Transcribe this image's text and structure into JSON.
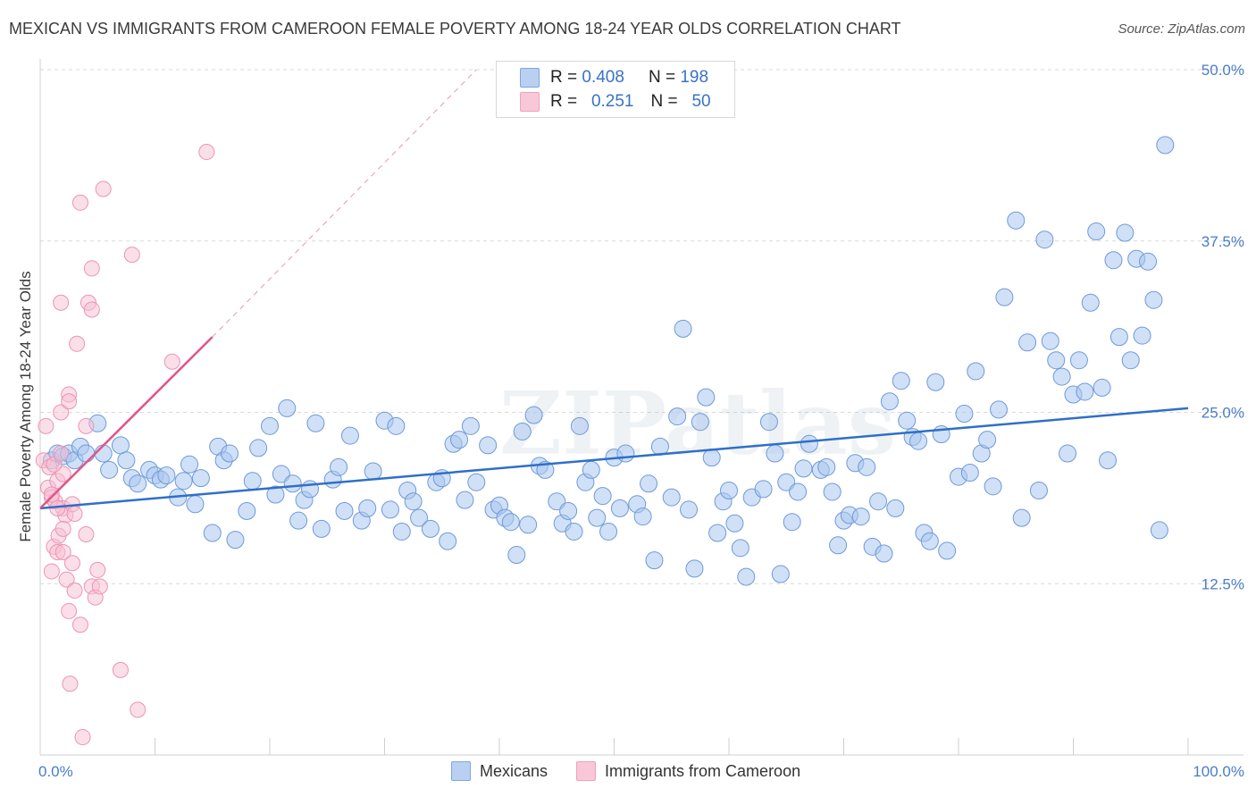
{
  "title": "MEXICAN VS IMMIGRANTS FROM CAMEROON FEMALE POVERTY AMONG 18-24 YEAR OLDS CORRELATION CHART",
  "source": "Source: ZipAtlas.com",
  "watermark": "ZIPatlas",
  "legend": {
    "row1": {
      "r_label": "R =",
      "r_value": "0.408",
      "n_label": "N =",
      "n_value": "198"
    },
    "row2": {
      "r_label": "R =",
      "r_value": "0.251",
      "n_label": "N =",
      "n_value": "50"
    }
  },
  "bottom_legend": {
    "mexicans": "Mexicans",
    "cameroon": "Immigrants from Cameroon"
  },
  "chart_data": {
    "type": "scatter",
    "title": "MEXICAN VS IMMIGRANTS FROM CAMEROON FEMALE POVERTY AMONG 18-24 YEAR OLDS CORRELATION CHART",
    "xlabel": "",
    "ylabel": "Female Poverty Among 18-24 Year Olds",
    "xlim": [
      0,
      100
    ],
    "ylim": [
      0,
      50
    ],
    "x_tick_labels": [
      "0.0%",
      "100.0%"
    ],
    "y_tick_labels": [
      "12.5%",
      "25.0%",
      "37.5%",
      "50.0%"
    ],
    "y_tick_values": [
      12.5,
      25.0,
      37.5,
      50.0
    ],
    "grid": true,
    "legend_position": "top-center",
    "colors": {
      "mexicans": "#7fa6e0",
      "mexicans_line": "#2f6fc8",
      "cameroon": "#f0a0bb",
      "cameroon_line": "#e0558a"
    },
    "series": [
      {
        "name": "Mexicans",
        "r": 0.408,
        "n": 198,
        "trend": {
          "x": [
            0,
            100
          ],
          "y": [
            18.0,
            25.3
          ]
        },
        "points": [
          [
            1.0,
            21.5
          ],
          [
            1.5,
            22.0
          ],
          [
            2.0,
            21.8
          ],
          [
            2.5,
            22.0
          ],
          [
            3.0,
            21.5
          ],
          [
            3.5,
            22.5
          ],
          [
            4.0,
            22.0
          ],
          [
            5.0,
            24.2
          ],
          [
            5.5,
            22.0
          ],
          [
            6.0,
            20.8
          ],
          [
            7.0,
            22.6
          ],
          [
            7.5,
            21.5
          ],
          [
            8.0,
            20.2
          ],
          [
            8.5,
            19.8
          ],
          [
            9.5,
            20.8
          ],
          [
            10.0,
            20.4
          ],
          [
            10.5,
            20.1
          ],
          [
            11.0,
            20.4
          ],
          [
            12.0,
            18.8
          ],
          [
            12.5,
            20.0
          ],
          [
            13.0,
            21.2
          ],
          [
            13.5,
            18.3
          ],
          [
            14.0,
            20.2
          ],
          [
            15.0,
            16.2
          ],
          [
            15.5,
            22.5
          ],
          [
            16.0,
            21.5
          ],
          [
            16.5,
            22.0
          ],
          [
            17.0,
            15.7
          ],
          [
            18.0,
            17.8
          ],
          [
            18.5,
            20.0
          ],
          [
            19.0,
            22.4
          ],
          [
            20.0,
            24.0
          ],
          [
            20.5,
            19.0
          ],
          [
            21.0,
            20.5
          ],
          [
            21.5,
            25.3
          ],
          [
            22.0,
            19.8
          ],
          [
            22.5,
            17.1
          ],
          [
            23.0,
            18.6
          ],
          [
            23.5,
            19.4
          ],
          [
            24.0,
            24.2
          ],
          [
            24.5,
            16.5
          ],
          [
            25.5,
            20.1
          ],
          [
            26.0,
            21.0
          ],
          [
            26.5,
            17.8
          ],
          [
            27.0,
            23.3
          ],
          [
            28.0,
            17.1
          ],
          [
            28.5,
            18.0
          ],
          [
            29.0,
            20.7
          ],
          [
            30.0,
            24.4
          ],
          [
            30.5,
            17.9
          ],
          [
            31.0,
            24.0
          ],
          [
            31.5,
            16.3
          ],
          [
            32.0,
            19.3
          ],
          [
            32.5,
            18.5
          ],
          [
            33.0,
            17.3
          ],
          [
            34.0,
            16.5
          ],
          [
            34.5,
            19.9
          ],
          [
            35.0,
            20.2
          ],
          [
            35.5,
            15.6
          ],
          [
            36.0,
            22.7
          ],
          [
            36.5,
            23.0
          ],
          [
            37.0,
            18.6
          ],
          [
            37.5,
            24.0
          ],
          [
            38.0,
            19.9
          ],
          [
            39.0,
            22.6
          ],
          [
            39.5,
            17.9
          ],
          [
            40.0,
            18.2
          ],
          [
            40.5,
            17.3
          ],
          [
            41.0,
            17.0
          ],
          [
            41.5,
            14.6
          ],
          [
            42.0,
            23.6
          ],
          [
            42.5,
            16.8
          ],
          [
            43.0,
            24.8
          ],
          [
            43.5,
            21.1
          ],
          [
            44.0,
            20.8
          ],
          [
            45.0,
            18.5
          ],
          [
            45.5,
            16.9
          ],
          [
            46.0,
            17.8
          ],
          [
            46.5,
            16.3
          ],
          [
            47.0,
            24.0
          ],
          [
            47.5,
            19.9
          ],
          [
            48.0,
            20.8
          ],
          [
            48.5,
            17.3
          ],
          [
            49.0,
            18.9
          ],
          [
            49.5,
            16.3
          ],
          [
            50.0,
            21.7
          ],
          [
            50.5,
            18.0
          ],
          [
            51.0,
            22.0
          ],
          [
            52.0,
            18.3
          ],
          [
            52.5,
            17.4
          ],
          [
            53.0,
            19.8
          ],
          [
            53.5,
            14.2
          ],
          [
            54.0,
            22.5
          ],
          [
            55.0,
            18.8
          ],
          [
            55.5,
            24.7
          ],
          [
            56.0,
            31.1
          ],
          [
            56.5,
            17.9
          ],
          [
            57.0,
            13.6
          ],
          [
            57.5,
            24.3
          ],
          [
            58.0,
            26.1
          ],
          [
            58.5,
            21.7
          ],
          [
            59.0,
            16.2
          ],
          [
            59.5,
            18.5
          ],
          [
            60.0,
            19.3
          ],
          [
            60.5,
            16.9
          ],
          [
            61.0,
            15.1
          ],
          [
            61.5,
            13.0
          ],
          [
            62.0,
            18.8
          ],
          [
            63.0,
            19.4
          ],
          [
            63.5,
            24.3
          ],
          [
            64.0,
            22.0
          ],
          [
            64.5,
            13.2
          ],
          [
            65.0,
            19.9
          ],
          [
            65.5,
            17.0
          ],
          [
            66.0,
            19.2
          ],
          [
            66.5,
            20.9
          ],
          [
            67.0,
            22.7
          ],
          [
            68.0,
            20.8
          ],
          [
            68.5,
            21.0
          ],
          [
            69.0,
            19.2
          ],
          [
            69.5,
            15.3
          ],
          [
            70.0,
            17.1
          ],
          [
            70.5,
            17.5
          ],
          [
            71.0,
            21.3
          ],
          [
            71.5,
            17.4
          ],
          [
            72.0,
            21.0
          ],
          [
            72.5,
            15.2
          ],
          [
            73.0,
            18.5
          ],
          [
            73.5,
            14.7
          ],
          [
            74.0,
            25.8
          ],
          [
            74.5,
            18.0
          ],
          [
            75.0,
            27.3
          ],
          [
            75.5,
            24.4
          ],
          [
            76.0,
            23.2
          ],
          [
            76.5,
            22.9
          ],
          [
            77.0,
            16.2
          ],
          [
            77.5,
            15.6
          ],
          [
            78.0,
            27.2
          ],
          [
            78.5,
            23.4
          ],
          [
            79.0,
            14.9
          ],
          [
            80.0,
            20.3
          ],
          [
            80.5,
            24.9
          ],
          [
            81.0,
            20.6
          ],
          [
            81.5,
            28.0
          ],
          [
            82.0,
            22.0
          ],
          [
            82.5,
            23.0
          ],
          [
            83.0,
            19.6
          ],
          [
            83.5,
            25.2
          ],
          [
            84.0,
            33.4
          ],
          [
            85.0,
            39.0
          ],
          [
            85.5,
            17.3
          ],
          [
            86.0,
            30.1
          ],
          [
            87.0,
            19.3
          ],
          [
            87.5,
            37.6
          ],
          [
            88.0,
            30.2
          ],
          [
            88.5,
            28.8
          ],
          [
            89.0,
            27.6
          ],
          [
            89.5,
            22.0
          ],
          [
            90.0,
            26.3
          ],
          [
            90.5,
            28.8
          ],
          [
            91.0,
            26.5
          ],
          [
            91.5,
            33.0
          ],
          [
            92.0,
            38.2
          ],
          [
            92.5,
            26.8
          ],
          [
            93.0,
            21.5
          ],
          [
            93.5,
            36.1
          ],
          [
            94.0,
            30.5
          ],
          [
            94.5,
            38.1
          ],
          [
            95.0,
            28.8
          ],
          [
            95.5,
            36.2
          ],
          [
            96.0,
            30.6
          ],
          [
            96.5,
            36.0
          ],
          [
            97.0,
            33.2
          ],
          [
            97.5,
            16.4
          ],
          [
            98.0,
            44.5
          ]
        ]
      },
      {
        "name": "Immigrants from Cameroon",
        "r": 0.251,
        "n": 50,
        "trend": {
          "x": [
            0,
            15
          ],
          "y": [
            18.0,
            30.5
          ]
        },
        "trend_extension": {
          "x": [
            15,
            38
          ],
          "y": [
            30.5,
            50.0
          ]
        },
        "points": [
          [
            0.3,
            21.5
          ],
          [
            0.5,
            24.0
          ],
          [
            0.7,
            19.5
          ],
          [
            0.8,
            21.0
          ],
          [
            1.0,
            18.8
          ],
          [
            1.0,
            13.4
          ],
          [
            1.2,
            15.2
          ],
          [
            1.3,
            18.5
          ],
          [
            1.5,
            14.8
          ],
          [
            1.5,
            20.0
          ],
          [
            1.6,
            16.0
          ],
          [
            1.8,
            33.0
          ],
          [
            1.8,
            25.0
          ],
          [
            2.0,
            14.8
          ],
          [
            2.0,
            18.0
          ],
          [
            2.2,
            17.5
          ],
          [
            2.3,
            12.8
          ],
          [
            2.5,
            26.3
          ],
          [
            2.5,
            10.5
          ],
          [
            2.6,
            5.2
          ],
          [
            2.8,
            18.3
          ],
          [
            3.0,
            17.6
          ],
          [
            3.2,
            30.0
          ],
          [
            3.5,
            40.3
          ],
          [
            3.5,
            9.5
          ],
          [
            3.7,
            1.3
          ],
          [
            4.0,
            16.1
          ],
          [
            4.0,
            24.0
          ],
          [
            4.2,
            33.0
          ],
          [
            4.5,
            35.5
          ],
          [
            4.5,
            12.3
          ],
          [
            4.5,
            32.5
          ],
          [
            4.8,
            11.5
          ],
          [
            5.0,
            13.5
          ],
          [
            5.2,
            12.3
          ],
          [
            5.5,
            41.3
          ],
          [
            7.0,
            6.2
          ],
          [
            8.0,
            36.5
          ],
          [
            8.5,
            3.3
          ],
          [
            11.5,
            28.7
          ],
          [
            14.5,
            44.0
          ],
          [
            2.0,
            20.5
          ],
          [
            2.5,
            25.8
          ],
          [
            1.2,
            21.2
          ],
          [
            1.0,
            19.0
          ],
          [
            3.0,
            12.0
          ],
          [
            2.0,
            16.5
          ],
          [
            1.5,
            18.0
          ],
          [
            2.8,
            14.0
          ],
          [
            1.8,
            22.0
          ]
        ]
      }
    ]
  }
}
